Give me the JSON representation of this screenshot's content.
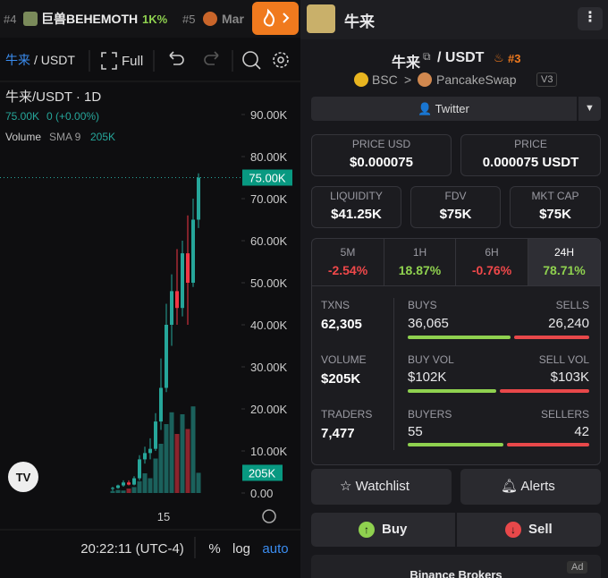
{
  "top_bar": {
    "items": [
      {
        "rank": "#4",
        "name": "巨兽BEHEMOTH",
        "change": "1K%"
      },
      {
        "rank": "#5",
        "name": "Mar"
      }
    ],
    "token": "牛来"
  },
  "chart_toolbar": {
    "pair_base": "牛来",
    "pair_quote": "/ USDT",
    "full": "Full"
  },
  "chart": {
    "title": "牛来/USDT · 1D",
    "price": "75.00K",
    "change": "0 (+0.00%)",
    "volume_label": "Volume",
    "sma": "SMA 9",
    "volume_value": "205K",
    "ylim": [
      0,
      100000
    ],
    "yticks": [
      {
        "value": 0,
        "label": "0.00"
      },
      {
        "value": 10000,
        "label": "10.00K"
      },
      {
        "value": 20000,
        "label": "20.00K"
      },
      {
        "value": 30000,
        "label": "30.00K"
      },
      {
        "value": 40000,
        "label": "40.00K"
      },
      {
        "value": 50000,
        "label": "50.00K"
      },
      {
        "value": 60000,
        "label": "60.00K"
      },
      {
        "value": 70000,
        "label": "70.00K"
      },
      {
        "value": 80000,
        "label": "80.00K"
      },
      {
        "value": 90000,
        "label": "90.00K"
      }
    ],
    "last_price": {
      "value": 75000,
      "label": "75.00K"
    },
    "volume_lim": [
      0,
      1000000
    ],
    "last_volume": {
      "value": 205000,
      "label": "205K"
    },
    "candles": [
      {
        "open": 1000,
        "high": 1500,
        "low": 500,
        "close": 1200
      },
      {
        "open": 1200,
        "high": 2000,
        "low": 1000,
        "close": 1800
      },
      {
        "open": 1800,
        "high": 3000,
        "low": 1500,
        "close": 2500
      },
      {
        "open": 2500,
        "high": 3000,
        "low": 1800,
        "close": 2000
      },
      {
        "open": 2000,
        "high": 4000,
        "low": 1800,
        "close": 3500
      },
      {
        "open": 3500,
        "high": 9000,
        "low": 3000,
        "close": 8000
      },
      {
        "open": 8000,
        "high": 11000,
        "low": 7000,
        "close": 9500
      },
      {
        "open": 9500,
        "high": 13000,
        "low": 8000,
        "close": 10500
      },
      {
        "open": 10500,
        "high": 19000,
        "low": 10000,
        "close": 17000
      },
      {
        "open": 17000,
        "high": 32000,
        "low": 15000,
        "close": 25000
      },
      {
        "open": 25000,
        "high": 45000,
        "low": 24000,
        "close": 40000
      },
      {
        "open": 40000,
        "high": 52000,
        "low": 35000,
        "close": 48000
      },
      {
        "open": 48000,
        "high": 58000,
        "low": 40000,
        "close": 44000
      },
      {
        "open": 44000,
        "high": 60000,
        "low": 42000,
        "close": 57000
      },
      {
        "open": 57000,
        "high": 66000,
        "low": 40000,
        "close": 50000
      },
      {
        "open": 50000,
        "high": 70000,
        "low": 49000,
        "close": 65000
      },
      {
        "open": 65000,
        "high": 76000,
        "low": 63000,
        "close": 75000
      }
    ],
    "volumes": [
      20000,
      30000,
      25000,
      45000,
      60000,
      120000,
      200000,
      150000,
      350000,
      500000,
      700000,
      820000,
      600000,
      800000,
      650000,
      880000,
      205000
    ],
    "x_label": "15",
    "time": "20:22:11 (UTC-4)",
    "percent": "%",
    "log": "log",
    "auto": "auto"
  },
  "pair": {
    "base": "牛来",
    "quote": "/ USDT",
    "rank": "#3",
    "chain": "BSC",
    "dex": "PancakeSwap",
    "version": "V3"
  },
  "twitter": "Twitter",
  "price_usd": {
    "label": "PRICE USD",
    "value": "$0.000075"
  },
  "price": {
    "label": "PRICE",
    "value": "0.000075 USDT"
  },
  "metrics": [
    {
      "label": "LIQUIDITY",
      "value": "$41.25K"
    },
    {
      "label": "FDV",
      "value": "$75K"
    },
    {
      "label": "MKT CAP",
      "value": "$75K"
    }
  ],
  "timeframes": [
    {
      "label": "5M",
      "change": "-2.54%"
    },
    {
      "label": "1H",
      "change": "18.87%"
    },
    {
      "label": "6H",
      "change": "-0.76%"
    },
    {
      "label": "24H",
      "change": "78.71%"
    }
  ],
  "stats": {
    "txns": {
      "label": "TXNS",
      "value": "62,305"
    },
    "buys": {
      "label": "BUYS",
      "value": "36,065"
    },
    "sells": {
      "label": "SELLS",
      "value": "26,240"
    },
    "volume": {
      "label": "VOLUME",
      "value": "$205K"
    },
    "buy_vol": {
      "label": "BUY VOL",
      "value": "$102K"
    },
    "sell_vol": {
      "label": "SELL VOL",
      "value": "$103K"
    },
    "traders": {
      "label": "TRADERS",
      "value": "7,477"
    },
    "buyers": {
      "label": "BUYERS",
      "value": "55"
    },
    "sellers": {
      "label": "SELLERS",
      "value": "42"
    }
  },
  "actions": {
    "watchlist": "Watchlist",
    "alerts": "Alerts",
    "buy": "Buy",
    "sell": "Sell"
  },
  "ad": {
    "text": "Binance Brokers",
    "badge": "Ad"
  }
}
